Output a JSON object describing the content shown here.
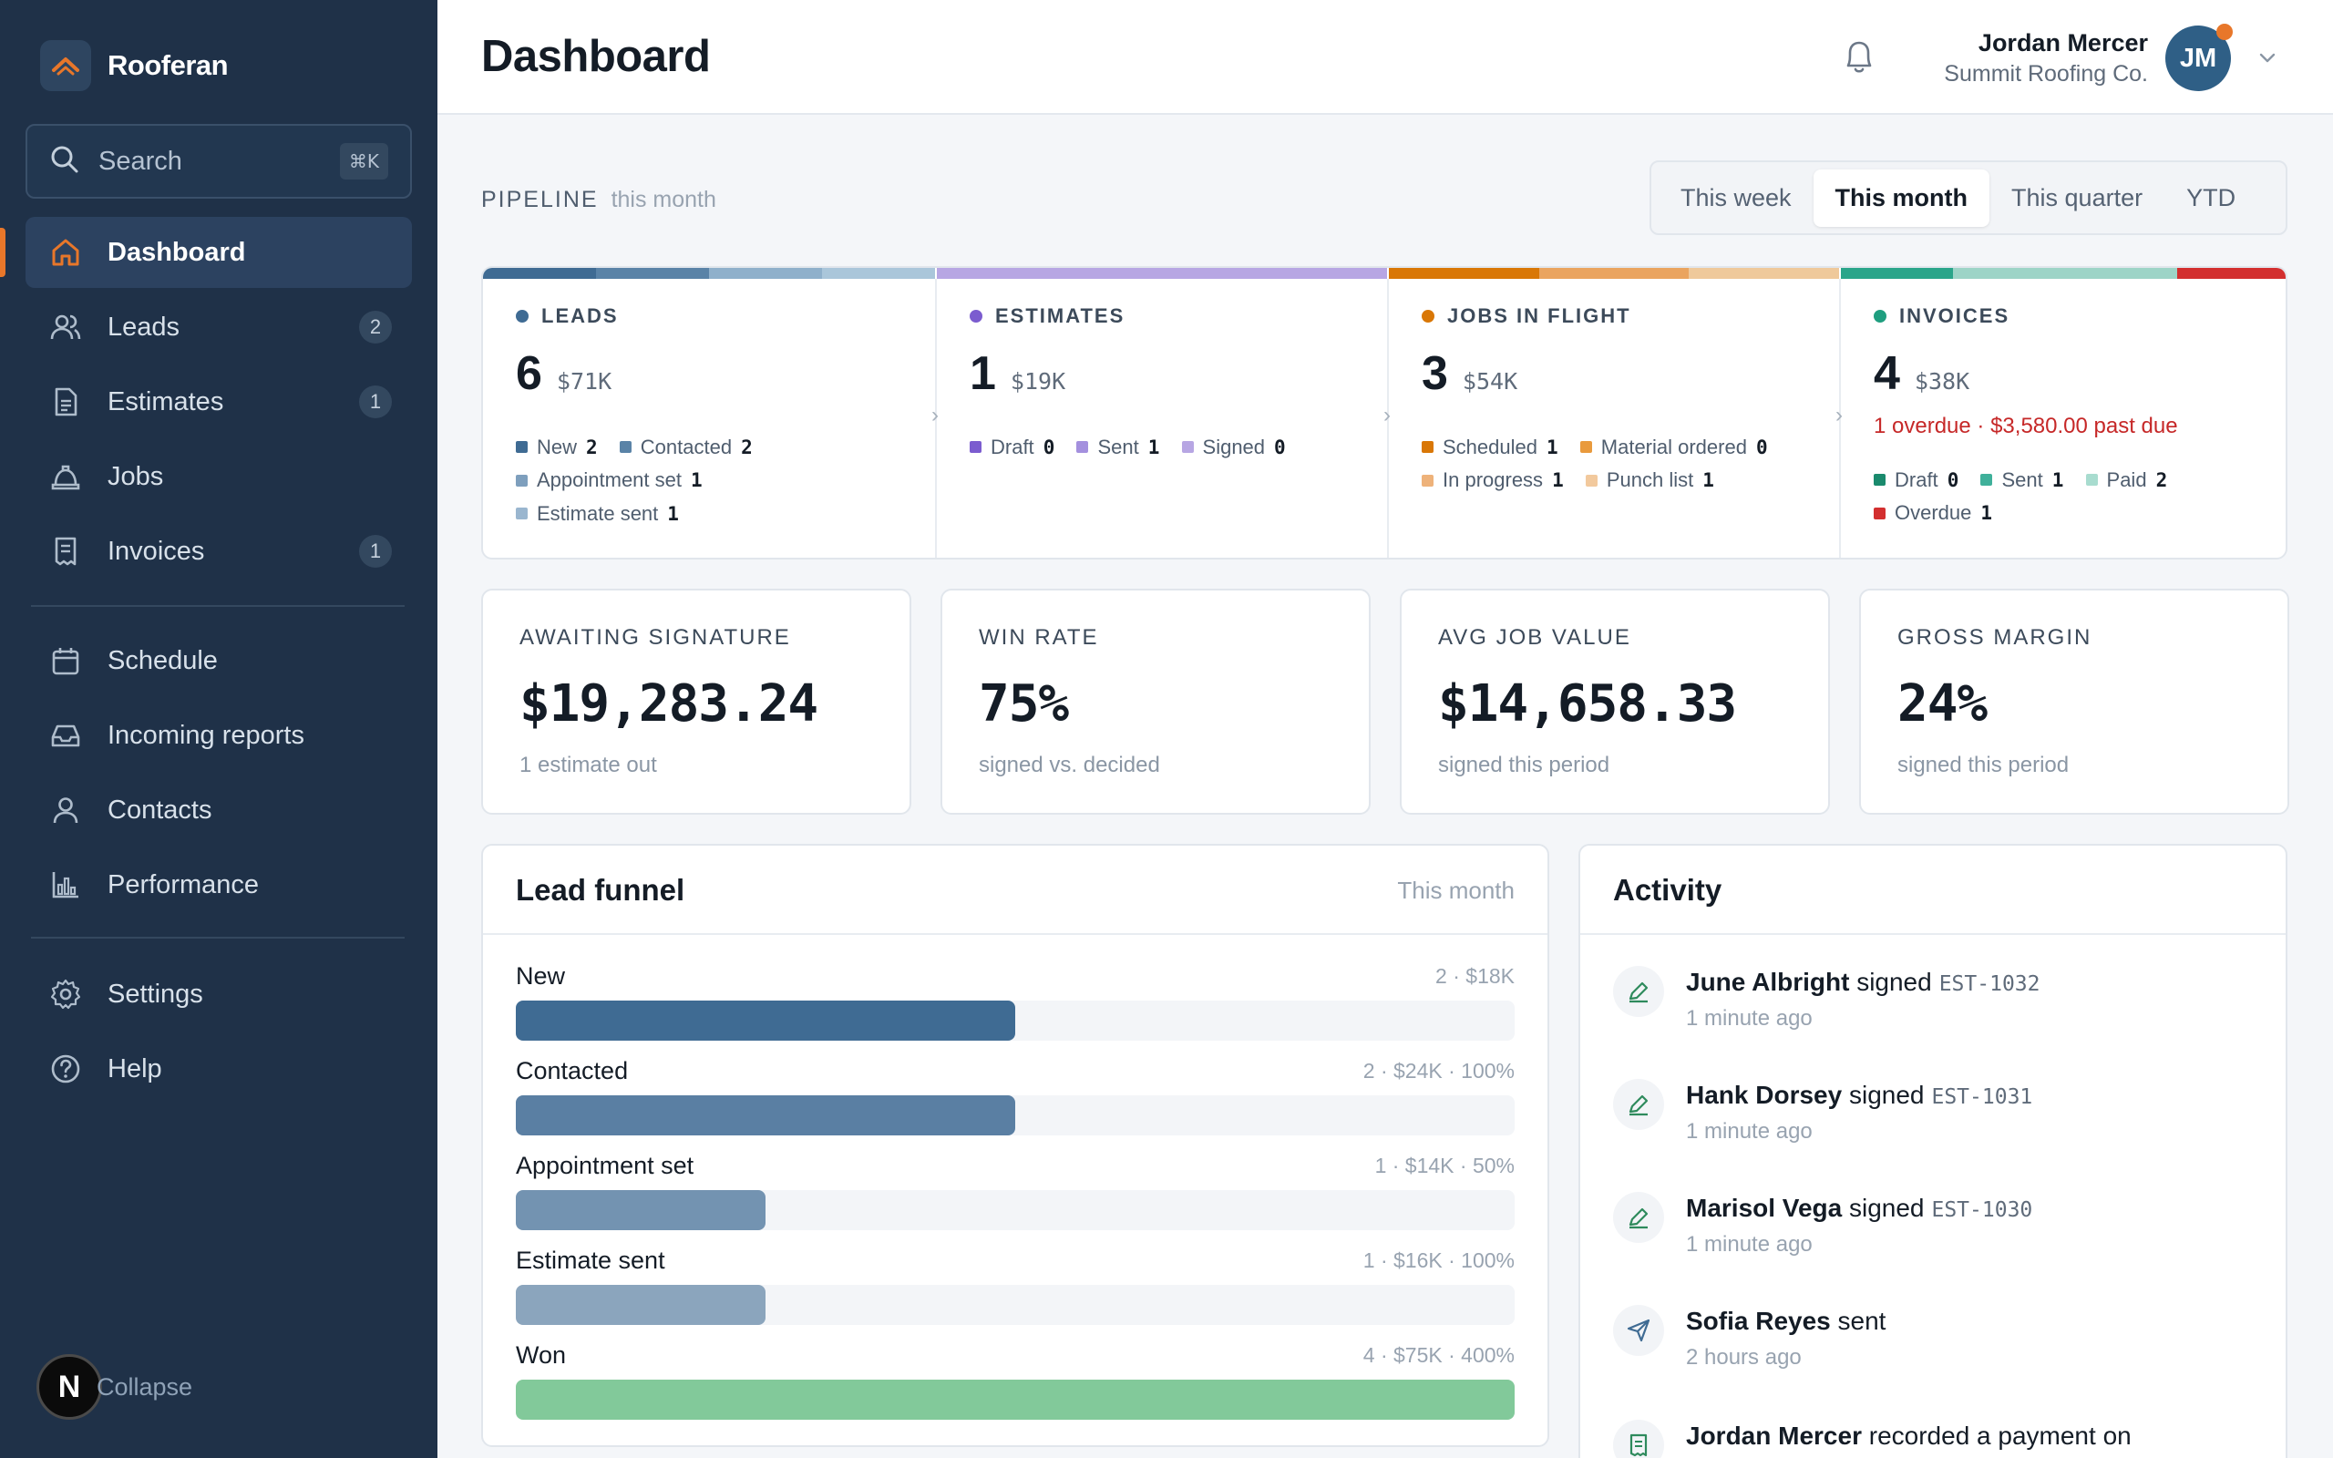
{
  "app": {
    "name": "Rooferan"
  },
  "sidebar": {
    "search": {
      "label": "Search",
      "shortcut": "⌘K"
    },
    "primary": [
      {
        "label": "Dashboard",
        "icon": "home-icon",
        "active": true,
        "badge": ""
      },
      {
        "label": "Leads",
        "icon": "users-icon",
        "badge": "2"
      },
      {
        "label": "Estimates",
        "icon": "document-icon",
        "badge": "1"
      },
      {
        "label": "Jobs",
        "icon": "hard-hat-icon",
        "badge": ""
      },
      {
        "label": "Invoices",
        "icon": "receipt-icon",
        "badge": "1"
      }
    ],
    "secondary": [
      {
        "label": "Schedule",
        "icon": "calendar-icon"
      },
      {
        "label": "Incoming reports",
        "icon": "inbox-icon"
      },
      {
        "label": "Contacts",
        "icon": "user-icon"
      },
      {
        "label": "Performance",
        "icon": "bar-chart-icon"
      }
    ],
    "tertiary": [
      {
        "label": "Settings",
        "icon": "gear-icon"
      },
      {
        "label": "Help",
        "icon": "help-circle-icon"
      }
    ],
    "collapse": {
      "label": "Collapse",
      "avatar_letter": "N"
    }
  },
  "header": {
    "title": "Dashboard",
    "user": {
      "name": "Jordan Mercer",
      "company": "Summit Roofing Co.",
      "initials": "JM"
    }
  },
  "pipeline": {
    "label": "PIPELINE",
    "sub": "this month",
    "ranges": [
      "This week",
      "This month",
      "This quarter",
      "YTD"
    ],
    "active_range": "This month",
    "stages": [
      {
        "title": "LEADS",
        "count": "6",
        "amount": "$71K",
        "dot_color": "#3f6b93",
        "bar": [
          "#3f6b93",
          "#5a83a7",
          "#8fb0cb",
          "#aac6da"
        ],
        "items": [
          {
            "label": "New",
            "value": "2",
            "color": "#3f6b93"
          },
          {
            "label": "Contacted",
            "value": "2",
            "color": "#5a83a7"
          },
          {
            "label": "Appointment set",
            "value": "1",
            "color": "#7e9fbd"
          },
          {
            "label": "Estimate sent",
            "value": "1",
            "color": "#9ab6cf"
          }
        ]
      },
      {
        "title": "ESTIMATES",
        "count": "1",
        "amount": "$19K",
        "dot_color": "#7b5ccf",
        "bar": [
          "#b7a6e3"
        ],
        "items": [
          {
            "label": "Draft",
            "value": "0",
            "color": "#7b5ccf"
          },
          {
            "label": "Sent",
            "value": "1",
            "color": "#a490de"
          },
          {
            "label": "Signed",
            "value": "0",
            "color": "#b7a6e3"
          }
        ]
      },
      {
        "title": "JOBS IN FLIGHT",
        "count": "3",
        "amount": "$54K",
        "dot_color": "#d97706",
        "bar": [
          "#d97706",
          "#eaa45f",
          "#efc99b"
        ],
        "items": [
          {
            "label": "Scheduled",
            "value": "1",
            "color": "#d97706"
          },
          {
            "label": "Material ordered",
            "value": "0",
            "color": "#e99a3d"
          },
          {
            "label": "In progress",
            "value": "1",
            "color": "#eeb27a"
          },
          {
            "label": "Punch list",
            "value": "1",
            "color": "#f2c99d"
          }
        ]
      },
      {
        "title": "INVOICES",
        "count": "4",
        "amount": "$38K",
        "dot_color": "#1f9e7f",
        "overdue": "1 overdue · $3,580.00 past due",
        "bar": [
          "#2aa58a",
          "#9dd4c7",
          "#9dd4c7",
          "#d32f2f"
        ],
        "items": [
          {
            "label": "Draft",
            "value": "0",
            "color": "#1a8a6d"
          },
          {
            "label": "Sent",
            "value": "1",
            "color": "#3fb09a"
          },
          {
            "label": "Paid",
            "value": "2",
            "color": "#a8dccf"
          },
          {
            "label": "Overdue",
            "value": "1",
            "color": "#d32f2f"
          }
        ]
      }
    ]
  },
  "kpis": [
    {
      "label": "AWAITING SIGNATURE",
      "value": "$19,283.24",
      "sub": "1 estimate out"
    },
    {
      "label": "WIN RATE",
      "value": "75%",
      "sub": "signed vs. decided"
    },
    {
      "label": "AVG JOB VALUE",
      "value": "$14,658.33",
      "sub": "signed this period"
    },
    {
      "label": "GROSS MARGIN",
      "value": "24%",
      "sub": "signed this period"
    }
  ],
  "funnel": {
    "title": "Lead funnel",
    "period": "This month",
    "rows": [
      {
        "label": "New",
        "meta": "2 · $18K",
        "fraction": 0.5,
        "color": "#3f6b93"
      },
      {
        "label": "Contacted",
        "meta": "2 · $24K · 100%",
        "fraction": 0.5,
        "color": "#5a7fa3"
      },
      {
        "label": "Appointment set",
        "meta": "1 · $14K · 50%",
        "fraction": 0.25,
        "color": "#7393b1"
      },
      {
        "label": "Estimate sent",
        "meta": "1 · $16K · 100%",
        "fraction": 0.25,
        "color": "#8ba5bd"
      },
      {
        "label": "Won",
        "meta": "4 · $75K · 400%",
        "fraction": 1.0,
        "color": "#82c99a"
      }
    ]
  },
  "activity": {
    "title": "Activity",
    "items": [
      {
        "name": "June Albright",
        "verb": "signed",
        "code": "EST-1032",
        "time": "1 minute ago",
        "icon": "pen-icon"
      },
      {
        "name": "Hank Dorsey",
        "verb": "signed",
        "code": "EST-1031",
        "time": "1 minute ago",
        "icon": "pen-icon"
      },
      {
        "name": "Marisol Vega",
        "verb": "signed",
        "code": "EST-1030",
        "time": "1 minute ago",
        "icon": "pen-icon"
      },
      {
        "name": "Sofia Reyes",
        "verb": "sent",
        "code": "",
        "time": "2 hours ago",
        "icon": "send-icon"
      },
      {
        "name": "Jordan Mercer",
        "verb": "recorded a payment on",
        "code": "",
        "time": "",
        "icon": "receipt-icon"
      }
    ]
  }
}
